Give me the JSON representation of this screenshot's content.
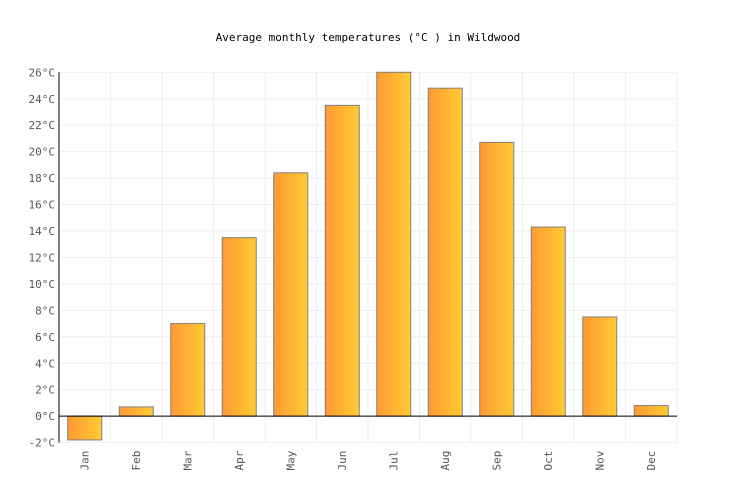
{
  "chart_data": {
    "type": "bar",
    "title": "Average monthly temperatures (°C ) in Wildwood",
    "xlabel": "",
    "ylabel": "",
    "unit": "°C",
    "categories": [
      "Jan",
      "Feb",
      "Mar",
      "Apr",
      "May",
      "Jun",
      "Jul",
      "Aug",
      "Sep",
      "Oct",
      "Nov",
      "Dec"
    ],
    "values": [
      -1.8,
      0.7,
      7.0,
      13.5,
      18.4,
      23.5,
      26.0,
      24.8,
      20.7,
      14.3,
      7.5,
      0.8
    ],
    "ylim": [
      -2,
      26
    ],
    "yticks": [
      -2,
      0,
      2,
      4,
      6,
      8,
      10,
      12,
      14,
      16,
      18,
      20,
      22,
      24,
      26
    ],
    "grid": true,
    "legend": "none",
    "colors": {
      "bar_left": "#ff9933",
      "bar_right": "#ffcc33",
      "bar_stroke": "#808080",
      "grid": "#eeeeee",
      "axis": "#000000"
    }
  }
}
